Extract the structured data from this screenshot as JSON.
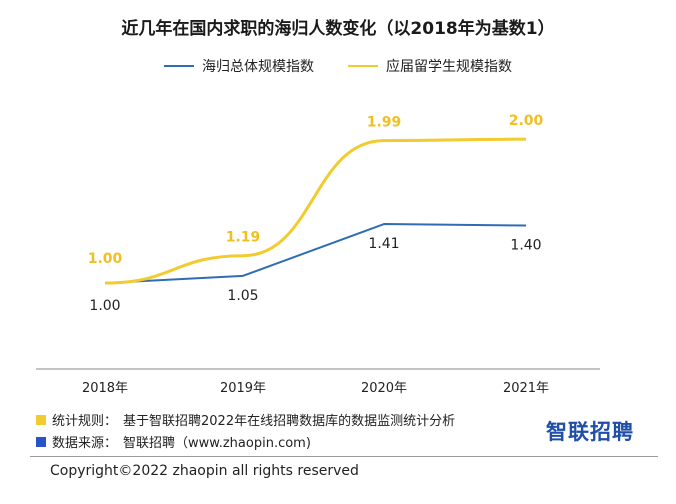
{
  "chart_data": {
    "type": "line",
    "title": "近几年在国内求职的海归人数变化（以2018年为基数1）",
    "categories": [
      "2018年",
      "2019年",
      "2020年",
      "2021年"
    ],
    "series": [
      {
        "name": "海归总体规模指数",
        "values": [
          1.0,
          1.05,
          1.41,
          1.4
        ],
        "labels": [
          "1.00",
          "1.05",
          "1.41",
          "1.40"
        ],
        "color": "#2f6db3"
      },
      {
        "name": "应届留学生规模指数",
        "values": [
          1.0,
          1.19,
          1.99,
          2.0
        ],
        "labels": [
          "1.00",
          "1.19",
          "1.99",
          "2.00"
        ],
        "color": "#f2cb2e"
      }
    ],
    "ylim": [
      0.5,
      2.3
    ],
    "grid": false,
    "legend": "top-center"
  },
  "notes": {
    "rule_label": "统计规则：",
    "rule_text": "基于智联招聘2022年在线招聘数据库的数据监测统计分析",
    "rule_color": "#f2cb2e",
    "source_label": "数据来源：",
    "source_text": "智联招聘（www.zhaopin.com)",
    "source_color": "#2a52c9"
  },
  "brand": {
    "logo_text": "智联招聘",
    "color": "#1f4fa8"
  },
  "footer": {
    "copyright": "Copyright©2022 zhaopin all rights reserved"
  }
}
